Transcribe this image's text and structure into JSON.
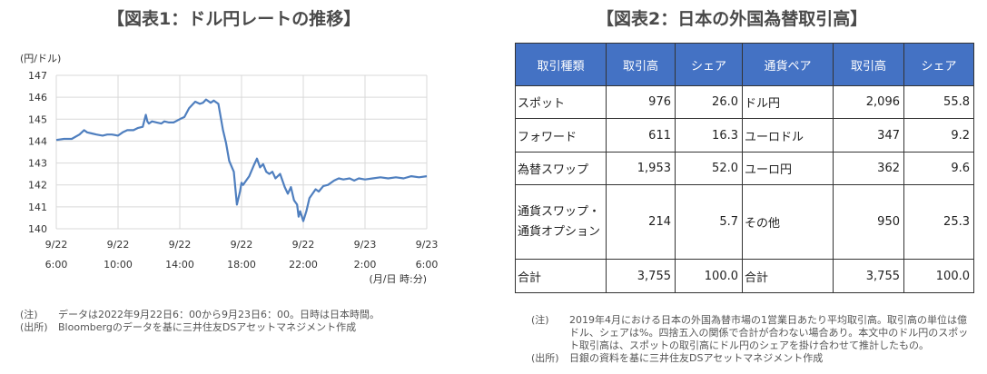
{
  "chart1": {
    "title": "【図表1：ドル円レートの推移】",
    "notes": [
      {
        "key": "(注)",
        "text": "データは2022年9月22日6：00から9月23日6：00。日時は日本時間。"
      },
      {
        "key": "(出所)",
        "text": "Bloombergのデータを基に三井住友DSアセットマネジメント作成"
      }
    ],
    "color": "#4f7fbf"
  },
  "chart_data": {
    "type": "line",
    "ylabel": "(円/ドル)",
    "xlabel": "(月/日 時:分)",
    "ylim": [
      140,
      147
    ],
    "yticks": [
      140,
      141,
      142,
      143,
      144,
      145,
      146,
      147
    ],
    "xlim": [
      0,
      24
    ],
    "xticks": [
      {
        "x": 0,
        "line1": "9/22",
        "line2": "6:00"
      },
      {
        "x": 4,
        "line1": "9/22",
        "line2": "10:00"
      },
      {
        "x": 8,
        "line1": "9/22",
        "line2": "14:00"
      },
      {
        "x": 12,
        "line1": "9/22",
        "line2": "18:00"
      },
      {
        "x": 16,
        "line1": "9/22",
        "line2": "22:00"
      },
      {
        "x": 20,
        "line1": "9/23",
        "line2": "2:00"
      },
      {
        "x": 24,
        "line1": "9/23",
        "line2": "6:00"
      }
    ],
    "grid": true,
    "series": [
      {
        "x": [
          0,
          0.5,
          1.0,
          1.5,
          1.8,
          2.0,
          2.3,
          2.6,
          3.0,
          3.3,
          3.6,
          4.0,
          4.3,
          4.6,
          5.0,
          5.3,
          5.6,
          5.8,
          5.9,
          6.0,
          6.2,
          6.5,
          6.8,
          7.0,
          7.3,
          7.6,
          8.0,
          8.3,
          8.6,
          9.0,
          9.3,
          9.5,
          9.7,
          10.0,
          10.2,
          10.5,
          10.8,
          11.0,
          11.2,
          11.5,
          11.7,
          11.9,
          12.0,
          12.1,
          12.3,
          12.5,
          12.8,
          13.0,
          13.2,
          13.4,
          13.6,
          13.8,
          14.0,
          14.2,
          14.5,
          14.8,
          15.0,
          15.2,
          15.4,
          15.6,
          15.7,
          15.8,
          16.0,
          16.2,
          16.4,
          16.6,
          16.8,
          17.0,
          17.3,
          17.6,
          18.0,
          18.3,
          18.6,
          19.0,
          19.3,
          19.6,
          20.0,
          20.5,
          21.0,
          21.5,
          22.0,
          22.5,
          23.0,
          23.5,
          24.0
        ],
        "values": [
          144.05,
          144.1,
          144.1,
          144.3,
          144.5,
          144.4,
          144.35,
          144.3,
          144.25,
          144.3,
          144.3,
          144.25,
          144.4,
          144.5,
          144.5,
          144.6,
          144.65,
          145.2,
          144.9,
          144.8,
          144.9,
          144.85,
          144.8,
          144.9,
          144.85,
          144.85,
          145.0,
          145.1,
          145.5,
          145.8,
          145.7,
          145.75,
          145.9,
          145.75,
          145.85,
          145.7,
          144.5,
          143.9,
          143.1,
          142.6,
          141.1,
          141.7,
          142.1,
          142.0,
          142.2,
          142.4,
          142.9,
          143.2,
          142.8,
          142.95,
          142.6,
          142.5,
          142.6,
          142.3,
          142.5,
          141.9,
          141.6,
          141.9,
          141.3,
          141.1,
          140.55,
          140.8,
          140.35,
          140.8,
          141.4,
          141.6,
          141.8,
          141.7,
          141.95,
          142.0,
          142.2,
          142.3,
          142.25,
          142.3,
          142.2,
          142.3,
          142.25,
          142.3,
          142.35,
          142.3,
          142.35,
          142.3,
          142.4,
          142.35,
          142.4
        ]
      }
    ]
  },
  "table2": {
    "title": "【図表2：日本の外国為替取引高】",
    "headers": [
      "取引種類",
      "取引高",
      "シェア",
      "通貨ペア",
      "取引高",
      "シェア"
    ],
    "rows": [
      [
        "スポット",
        "976",
        "26.0",
        "ドル円",
        "2,096",
        "55.8"
      ],
      [
        "フォワード",
        "611",
        "16.3",
        "ユーロドル",
        "347",
        "9.2"
      ],
      [
        "為替スワップ",
        "1,953",
        "52.0",
        "ユーロ円",
        "362",
        "9.6"
      ],
      [
        "通貨スワップ・",
        "214",
        "5.7",
        "その他",
        "950",
        "25.3"
      ],
      [
        "合計",
        "3,755",
        "100.0",
        "合計",
        "3,755",
        "100.0"
      ]
    ],
    "row4_label_line2": "通貨オプション",
    "header_color": "#4472c4",
    "notes": [
      {
        "key": "(注)",
        "text": "2019年4月における日本の外国為替市場の1営業日あたり平均取引高。取引高の単位は億ドル、シェアは%。四捨五入の関係で合計が合わない場合あり。本文中のドル円のスポット取引高は、スポットの取引高にドル円のシェアを掛け合わせて推計したもの。"
      },
      {
        "key": "(出所)",
        "text": "日銀の資料を基に三井住友DSアセットマネジメント作成"
      }
    ]
  }
}
